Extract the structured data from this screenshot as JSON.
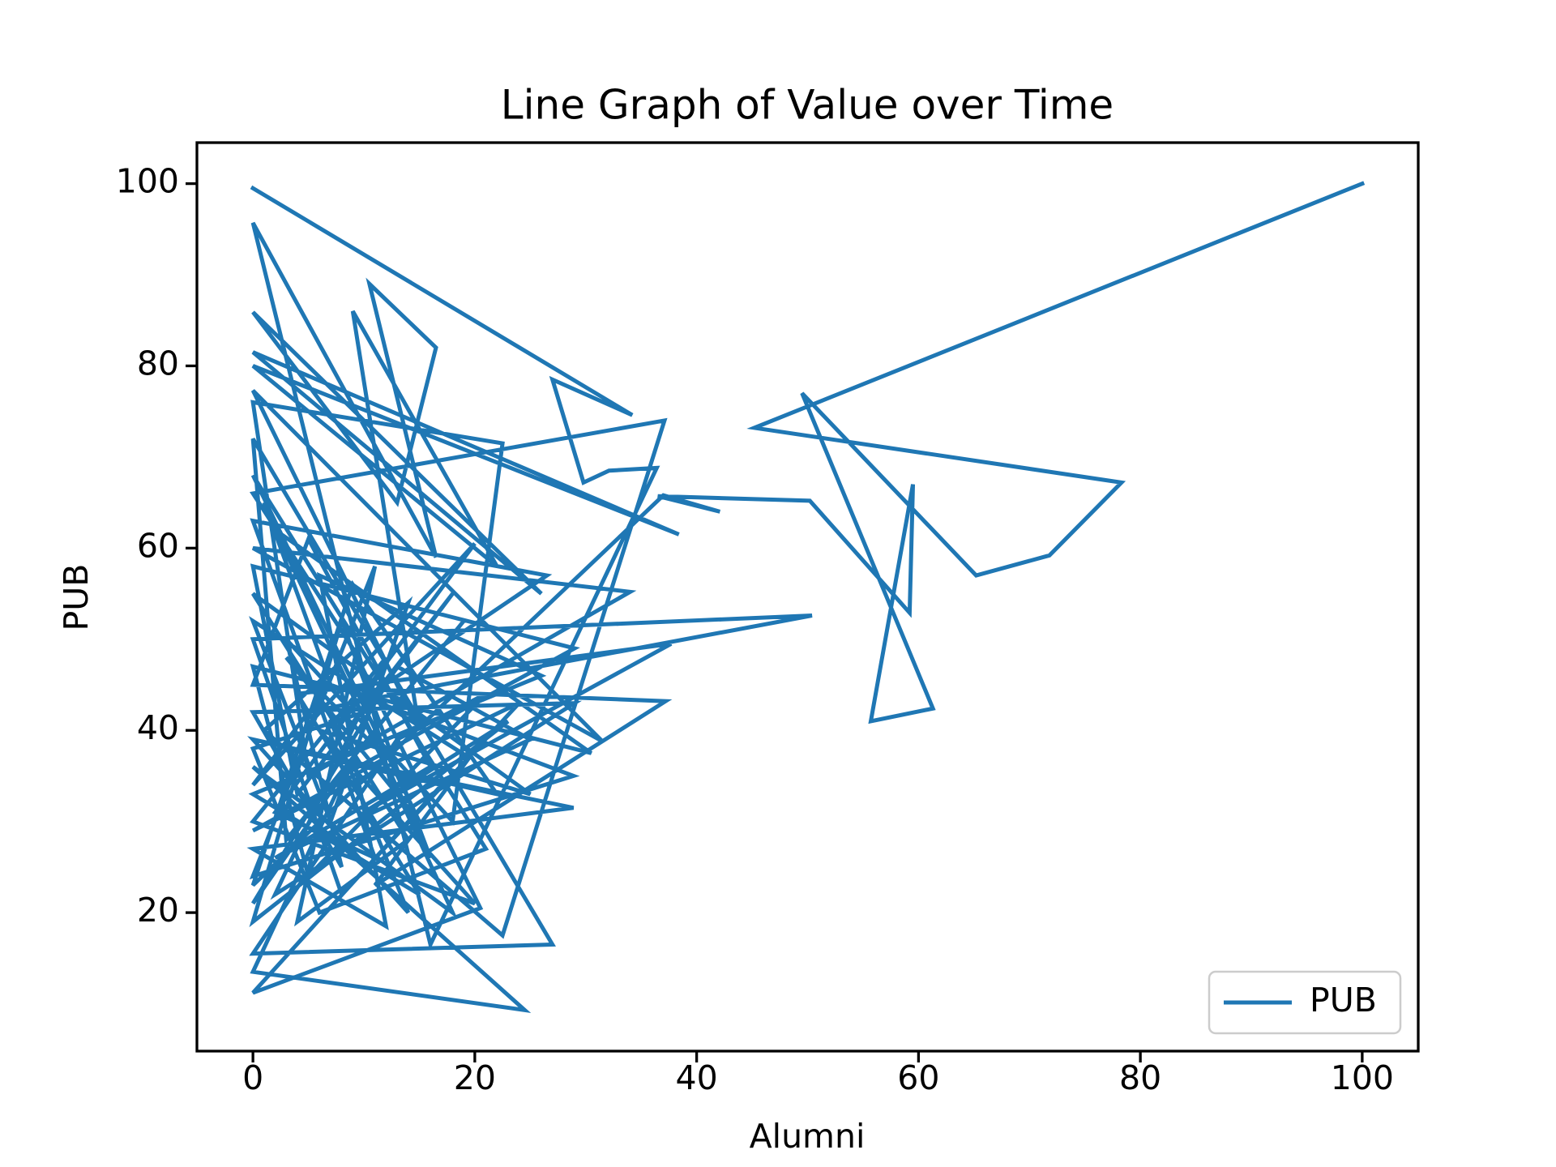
{
  "chart_data": {
    "type": "line",
    "title": "Line Graph of Value over Time",
    "x_label": "Alumni",
    "y_label": "PUB",
    "x": [
      0,
      34.2,
      27,
      29.8,
      32.1,
      36.4,
      16,
      0,
      16.5,
      10.5,
      16.5,
      13,
      0,
      26,
      0,
      38.4,
      0,
      22,
      9,
      15,
      0,
      31.5,
      0,
      34,
      5,
      0,
      22.5,
      18,
      3,
      8,
      0,
      29,
      2,
      12,
      0,
      20,
      6,
      25,
      0,
      14,
      4,
      11,
      0,
      28.9,
      7,
      1,
      18,
      0,
      24.5,
      0,
      9,
      19,
      3,
      0,
      27,
      0,
      13,
      21,
      5,
      0,
      30.5,
      2,
      16,
      8,
      0,
      23,
      10,
      37.7,
      4,
      15,
      0,
      26,
      6,
      12,
      0,
      28.9,
      3,
      17,
      0,
      20.5,
      9,
      0,
      37.1,
      22.5,
      1,
      14,
      7,
      0,
      19.5,
      11,
      37.2,
      0,
      5,
      16,
      2,
      25,
      13,
      0,
      8,
      29,
      0,
      4,
      18,
      10,
      0,
      6,
      21,
      0,
      15,
      3,
      12,
      0,
      24,
      8,
      0,
      50.4,
      17,
      5,
      0,
      20,
      2,
      11,
      0,
      26.5,
      7,
      14,
      0,
      22,
      9,
      0,
      37,
      42.1,
      36.5,
      50.2,
      59.2,
      59.5,
      55.7,
      61.3,
      49.5,
      65.2,
      71.8,
      78.3,
      45.2,
      100
    ],
    "series": [
      {
        "name": "PUB",
        "color": "#1f77b4",
        "values": [
          99.5,
          74.6,
          78.5,
          67.2,
          68.5,
          68.8,
          16.5,
          95.7,
          59,
          89,
          82,
          65,
          85.9,
          55,
          81.5,
          61.5,
          80,
          58,
          86,
          40,
          77.3,
          38.8,
          60,
          55.2,
          35,
          76,
          71.5,
          30,
          50,
          25,
          42,
          43,
          22,
          48,
          30,
          21,
          40,
          33,
          55,
          28,
          19,
          58,
          24,
          35,
          45,
          65,
          20,
          36,
          9.3,
          13.5,
          37,
          52,
          28,
          72,
          16.5,
          15.5,
          39,
          44,
          24,
          47,
          37.5,
          62,
          26,
          52,
          19,
          41,
          31,
          49.5,
          44,
          22,
          33,
          46,
          57,
          18.5,
          27,
          31.5,
          38,
          34,
          11.2,
          20.5,
          49,
          66,
          74,
          17.5,
          40,
          54,
          30,
          52,
          37,
          23,
          43.2,
          45,
          61,
          36,
          26,
          39,
          47,
          21,
          35,
          49,
          58,
          33,
          55,
          42,
          38,
          20,
          27,
          68,
          30,
          48,
          37,
          29,
          43,
          22,
          50,
          52.6,
          45,
          42,
          34,
          60.5,
          31,
          26,
          63,
          57,
          41,
          20,
          39,
          33,
          56,
          23,
          65.8,
          64,
          65.7,
          65.2,
          52.9,
          67,
          41,
          42.4,
          77,
          57,
          59.2,
          67.2,
          73.2,
          100
        ]
      }
    ],
    "xlim": [
      -5.05,
      105.05
    ],
    "xticks": [
      0,
      20,
      40,
      60,
      80,
      100
    ],
    "ylim": [
      4.8,
      104.5
    ],
    "yticks": [
      20,
      40,
      60,
      80,
      100
    ],
    "grid": false,
    "legend": "lower right"
  }
}
